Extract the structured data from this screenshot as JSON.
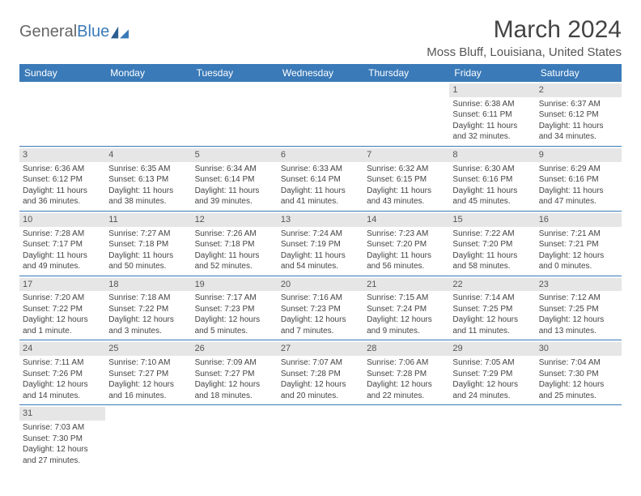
{
  "logo": {
    "gray": "General",
    "blue": "Blue"
  },
  "title": "March 2024",
  "location": "Moss Bluff, Louisiana, United States",
  "colors": {
    "header_bg": "#3a7ab8",
    "header_fg": "#ffffff",
    "daynum_bg": "#e6e6e6",
    "border": "#3a7ab8"
  },
  "weekdays": [
    "Sunday",
    "Monday",
    "Tuesday",
    "Wednesday",
    "Thursday",
    "Friday",
    "Saturday"
  ],
  "weeks": [
    [
      {
        "n": "",
        "lines": []
      },
      {
        "n": "",
        "lines": []
      },
      {
        "n": "",
        "lines": []
      },
      {
        "n": "",
        "lines": []
      },
      {
        "n": "",
        "lines": []
      },
      {
        "n": "1",
        "lines": [
          "Sunrise: 6:38 AM",
          "Sunset: 6:11 PM",
          "Daylight: 11 hours",
          "and 32 minutes."
        ]
      },
      {
        "n": "2",
        "lines": [
          "Sunrise: 6:37 AM",
          "Sunset: 6:12 PM",
          "Daylight: 11 hours",
          "and 34 minutes."
        ]
      }
    ],
    [
      {
        "n": "3",
        "lines": [
          "Sunrise: 6:36 AM",
          "Sunset: 6:12 PM",
          "Daylight: 11 hours",
          "and 36 minutes."
        ]
      },
      {
        "n": "4",
        "lines": [
          "Sunrise: 6:35 AM",
          "Sunset: 6:13 PM",
          "Daylight: 11 hours",
          "and 38 minutes."
        ]
      },
      {
        "n": "5",
        "lines": [
          "Sunrise: 6:34 AM",
          "Sunset: 6:14 PM",
          "Daylight: 11 hours",
          "and 39 minutes."
        ]
      },
      {
        "n": "6",
        "lines": [
          "Sunrise: 6:33 AM",
          "Sunset: 6:14 PM",
          "Daylight: 11 hours",
          "and 41 minutes."
        ]
      },
      {
        "n": "7",
        "lines": [
          "Sunrise: 6:32 AM",
          "Sunset: 6:15 PM",
          "Daylight: 11 hours",
          "and 43 minutes."
        ]
      },
      {
        "n": "8",
        "lines": [
          "Sunrise: 6:30 AM",
          "Sunset: 6:16 PM",
          "Daylight: 11 hours",
          "and 45 minutes."
        ]
      },
      {
        "n": "9",
        "lines": [
          "Sunrise: 6:29 AM",
          "Sunset: 6:16 PM",
          "Daylight: 11 hours",
          "and 47 minutes."
        ]
      }
    ],
    [
      {
        "n": "10",
        "lines": [
          "Sunrise: 7:28 AM",
          "Sunset: 7:17 PM",
          "Daylight: 11 hours",
          "and 49 minutes."
        ]
      },
      {
        "n": "11",
        "lines": [
          "Sunrise: 7:27 AM",
          "Sunset: 7:18 PM",
          "Daylight: 11 hours",
          "and 50 minutes."
        ]
      },
      {
        "n": "12",
        "lines": [
          "Sunrise: 7:26 AM",
          "Sunset: 7:18 PM",
          "Daylight: 11 hours",
          "and 52 minutes."
        ]
      },
      {
        "n": "13",
        "lines": [
          "Sunrise: 7:24 AM",
          "Sunset: 7:19 PM",
          "Daylight: 11 hours",
          "and 54 minutes."
        ]
      },
      {
        "n": "14",
        "lines": [
          "Sunrise: 7:23 AM",
          "Sunset: 7:20 PM",
          "Daylight: 11 hours",
          "and 56 minutes."
        ]
      },
      {
        "n": "15",
        "lines": [
          "Sunrise: 7:22 AM",
          "Sunset: 7:20 PM",
          "Daylight: 11 hours",
          "and 58 minutes."
        ]
      },
      {
        "n": "16",
        "lines": [
          "Sunrise: 7:21 AM",
          "Sunset: 7:21 PM",
          "Daylight: 12 hours",
          "and 0 minutes."
        ]
      }
    ],
    [
      {
        "n": "17",
        "lines": [
          "Sunrise: 7:20 AM",
          "Sunset: 7:22 PM",
          "Daylight: 12 hours",
          "and 1 minute."
        ]
      },
      {
        "n": "18",
        "lines": [
          "Sunrise: 7:18 AM",
          "Sunset: 7:22 PM",
          "Daylight: 12 hours",
          "and 3 minutes."
        ]
      },
      {
        "n": "19",
        "lines": [
          "Sunrise: 7:17 AM",
          "Sunset: 7:23 PM",
          "Daylight: 12 hours",
          "and 5 minutes."
        ]
      },
      {
        "n": "20",
        "lines": [
          "Sunrise: 7:16 AM",
          "Sunset: 7:23 PM",
          "Daylight: 12 hours",
          "and 7 minutes."
        ]
      },
      {
        "n": "21",
        "lines": [
          "Sunrise: 7:15 AM",
          "Sunset: 7:24 PM",
          "Daylight: 12 hours",
          "and 9 minutes."
        ]
      },
      {
        "n": "22",
        "lines": [
          "Sunrise: 7:14 AM",
          "Sunset: 7:25 PM",
          "Daylight: 12 hours",
          "and 11 minutes."
        ]
      },
      {
        "n": "23",
        "lines": [
          "Sunrise: 7:12 AM",
          "Sunset: 7:25 PM",
          "Daylight: 12 hours",
          "and 13 minutes."
        ]
      }
    ],
    [
      {
        "n": "24",
        "lines": [
          "Sunrise: 7:11 AM",
          "Sunset: 7:26 PM",
          "Daylight: 12 hours",
          "and 14 minutes."
        ]
      },
      {
        "n": "25",
        "lines": [
          "Sunrise: 7:10 AM",
          "Sunset: 7:27 PM",
          "Daylight: 12 hours",
          "and 16 minutes."
        ]
      },
      {
        "n": "26",
        "lines": [
          "Sunrise: 7:09 AM",
          "Sunset: 7:27 PM",
          "Daylight: 12 hours",
          "and 18 minutes."
        ]
      },
      {
        "n": "27",
        "lines": [
          "Sunrise: 7:07 AM",
          "Sunset: 7:28 PM",
          "Daylight: 12 hours",
          "and 20 minutes."
        ]
      },
      {
        "n": "28",
        "lines": [
          "Sunrise: 7:06 AM",
          "Sunset: 7:28 PM",
          "Daylight: 12 hours",
          "and 22 minutes."
        ]
      },
      {
        "n": "29",
        "lines": [
          "Sunrise: 7:05 AM",
          "Sunset: 7:29 PM",
          "Daylight: 12 hours",
          "and 24 minutes."
        ]
      },
      {
        "n": "30",
        "lines": [
          "Sunrise: 7:04 AM",
          "Sunset: 7:30 PM",
          "Daylight: 12 hours",
          "and 25 minutes."
        ]
      }
    ],
    [
      {
        "n": "31",
        "lines": [
          "Sunrise: 7:03 AM",
          "Sunset: 7:30 PM",
          "Daylight: 12 hours",
          "and 27 minutes."
        ]
      },
      {
        "n": "",
        "lines": []
      },
      {
        "n": "",
        "lines": []
      },
      {
        "n": "",
        "lines": []
      },
      {
        "n": "",
        "lines": []
      },
      {
        "n": "",
        "lines": []
      },
      {
        "n": "",
        "lines": []
      }
    ]
  ]
}
